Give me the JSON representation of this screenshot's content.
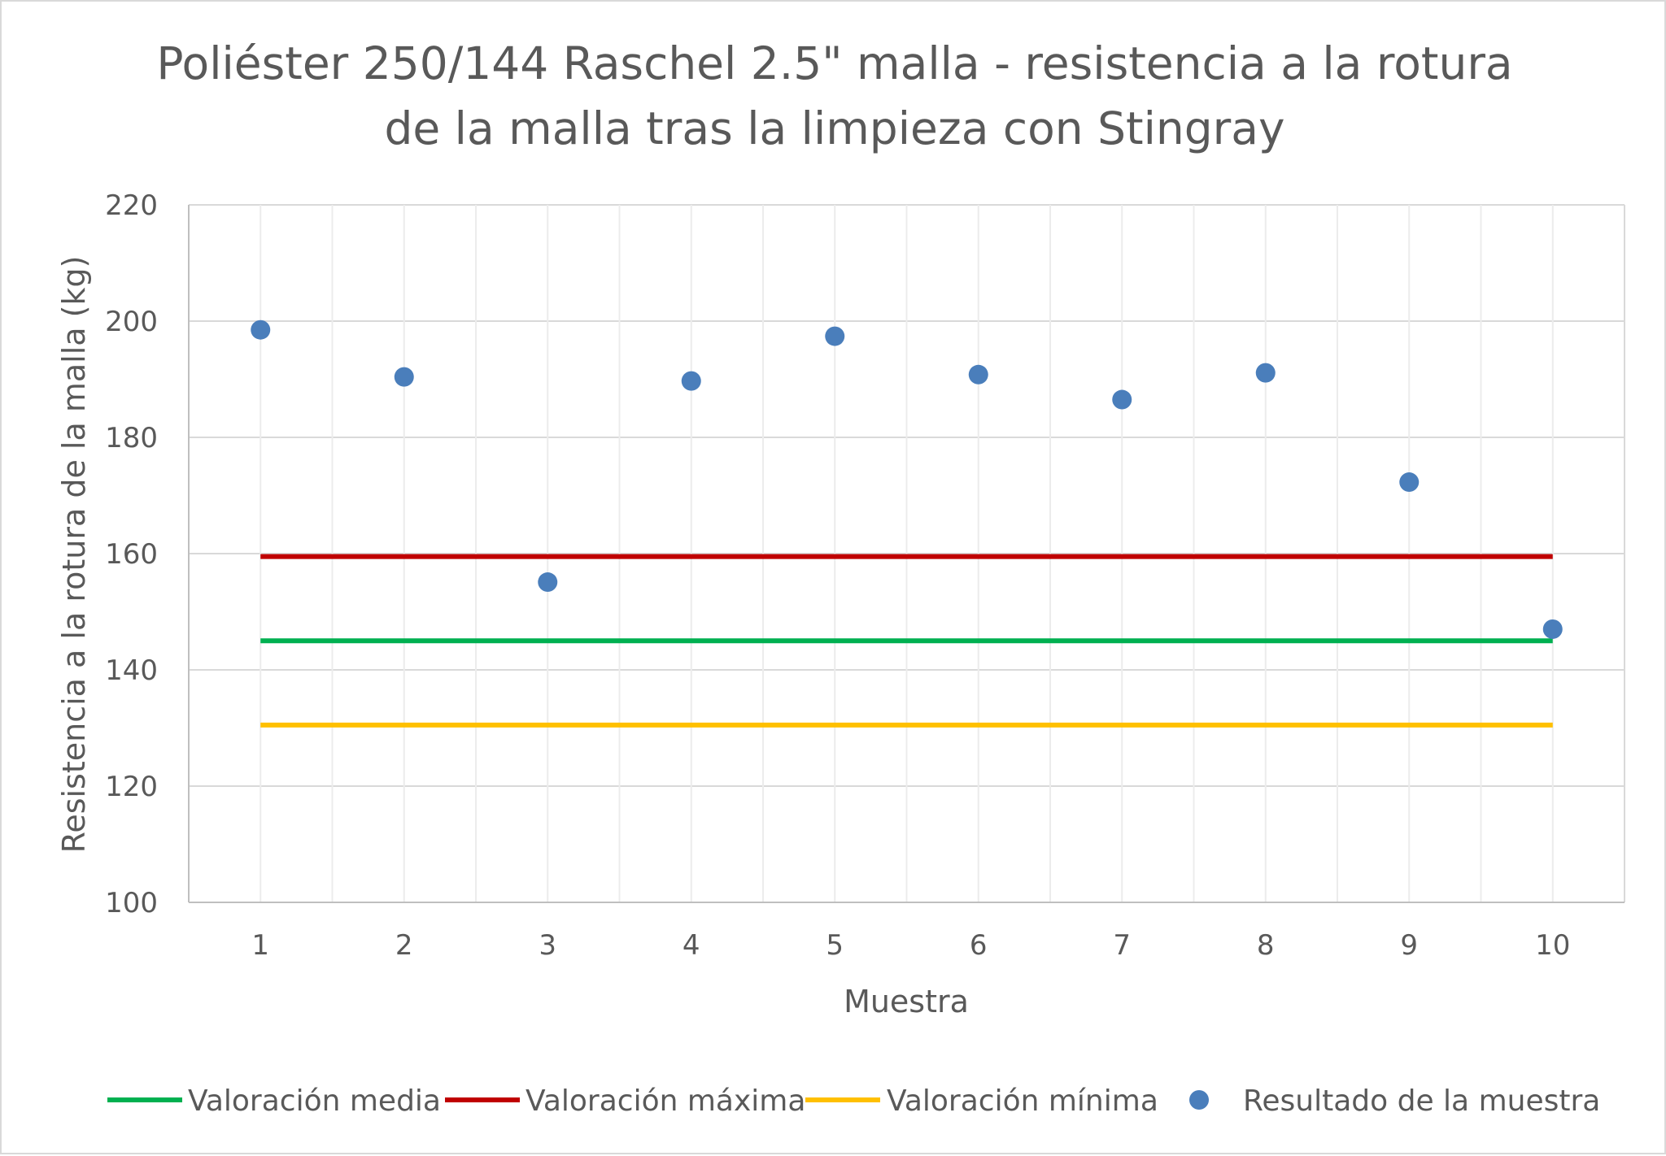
{
  "chart_data": {
    "type": "scatter",
    "title": [
      "Poliéster 250/144 Raschel 2.5\" malla - resistencia a la rotura",
      "de la malla tras la limpieza con Stingray"
    ],
    "xlabel": "Muestra",
    "ylabel": "Resistencia a la rotura de la malla (kg)",
    "xlim": [
      0.5,
      10.5
    ],
    "ylim": [
      100,
      220
    ],
    "x_ticks": [
      1,
      2,
      3,
      4,
      5,
      6,
      7,
      8,
      9,
      10
    ],
    "y_ticks": [
      100,
      120,
      140,
      160,
      180,
      200,
      220
    ],
    "grid": true,
    "legend_position": "bottom",
    "series": [
      {
        "name": "Valoración media",
        "kind": "line",
        "color": "#00b050",
        "x": [
          1,
          10
        ],
        "y": [
          145,
          145
        ]
      },
      {
        "name": "Valoración máxima",
        "kind": "line",
        "color": "#c00000",
        "x": [
          1,
          10
        ],
        "y": [
          159.5,
          159.5
        ]
      },
      {
        "name": "Valoración mínima",
        "kind": "line",
        "color": "#ffc000",
        "x": [
          1,
          10
        ],
        "y": [
          130.5,
          130.5
        ]
      },
      {
        "name": "Resultado de la muestra",
        "kind": "scatter",
        "color": "#4a7ebb",
        "x": [
          1,
          2,
          3,
          4,
          5,
          6,
          7,
          8,
          9,
          10
        ],
        "y": [
          198.5,
          190.4,
          155.1,
          189.7,
          197.4,
          190.8,
          186.5,
          191.1,
          172.3,
          147.0
        ]
      }
    ]
  }
}
